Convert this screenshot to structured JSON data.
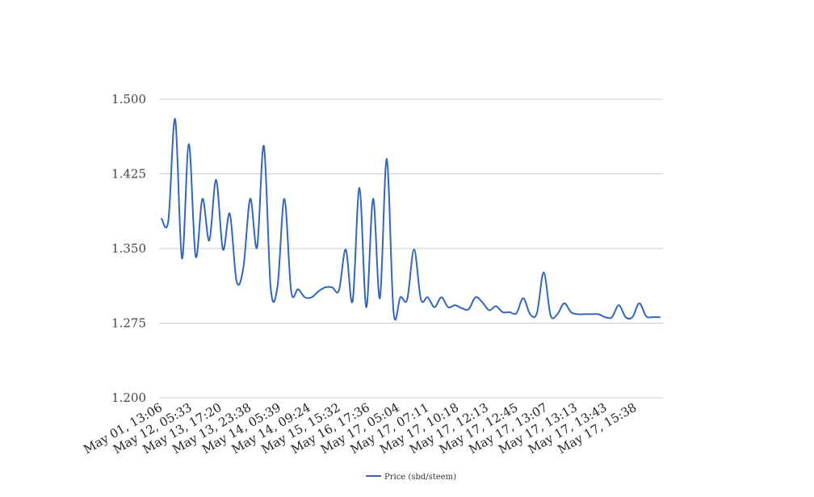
{
  "chart_data": {
    "type": "line",
    "title": "",
    "xlabel": "",
    "ylabel": "",
    "ylim": [
      1.2,
      1.5
    ],
    "y_ticks": [
      "1.200",
      "1.275",
      "1.350",
      "1.425",
      "1.500"
    ],
    "y_tick_values": [
      1.2,
      1.275,
      1.35,
      1.425,
      1.5
    ],
    "grid": true,
    "legend_position": "bottom",
    "x_tick_labels": [
      "May 01, 13:06",
      "May 12, 05:33",
      "May 13, 17:20",
      "May 13, 23:38",
      "May 14, 05:39",
      "May 14, 09:24",
      "May 15, 15:32",
      "May 16, 17:36",
      "May 17, 05:04",
      "May 17, 07:11",
      "May 17, 10:18",
      "May 17, 12:13",
      "May 17, 12:45",
      "May 17, 13:07",
      "May 17, 13:13",
      "May 17, 13:43",
      "May 17, 15:38"
    ],
    "series": [
      {
        "name": "Price (sbd/steem)",
        "color": "#3366bb",
        "values": [
          1.38,
          1.378,
          1.48,
          1.34,
          1.455,
          1.342,
          1.4,
          1.358,
          1.419,
          1.349,
          1.385,
          1.317,
          1.331,
          1.4,
          1.351,
          1.453,
          1.31,
          1.312,
          1.4,
          1.307,
          1.309,
          1.301,
          1.301,
          1.307,
          1.311,
          1.311,
          1.308,
          1.349,
          1.297,
          1.411,
          1.291,
          1.4,
          1.3,
          1.44,
          1.286,
          1.301,
          1.299,
          1.349,
          1.299,
          1.301,
          1.291,
          1.301,
          1.291,
          1.293,
          1.29,
          1.289,
          1.301,
          1.296,
          1.288,
          1.292,
          1.286,
          1.286,
          1.285,
          1.3,
          1.284,
          1.285,
          1.326,
          1.283,
          1.284,
          1.295,
          1.286,
          1.284,
          1.284,
          1.284,
          1.284,
          1.281,
          1.281,
          1.293,
          1.281,
          1.281,
          1.295,
          1.282,
          1.281,
          1.281
        ]
      }
    ]
  }
}
